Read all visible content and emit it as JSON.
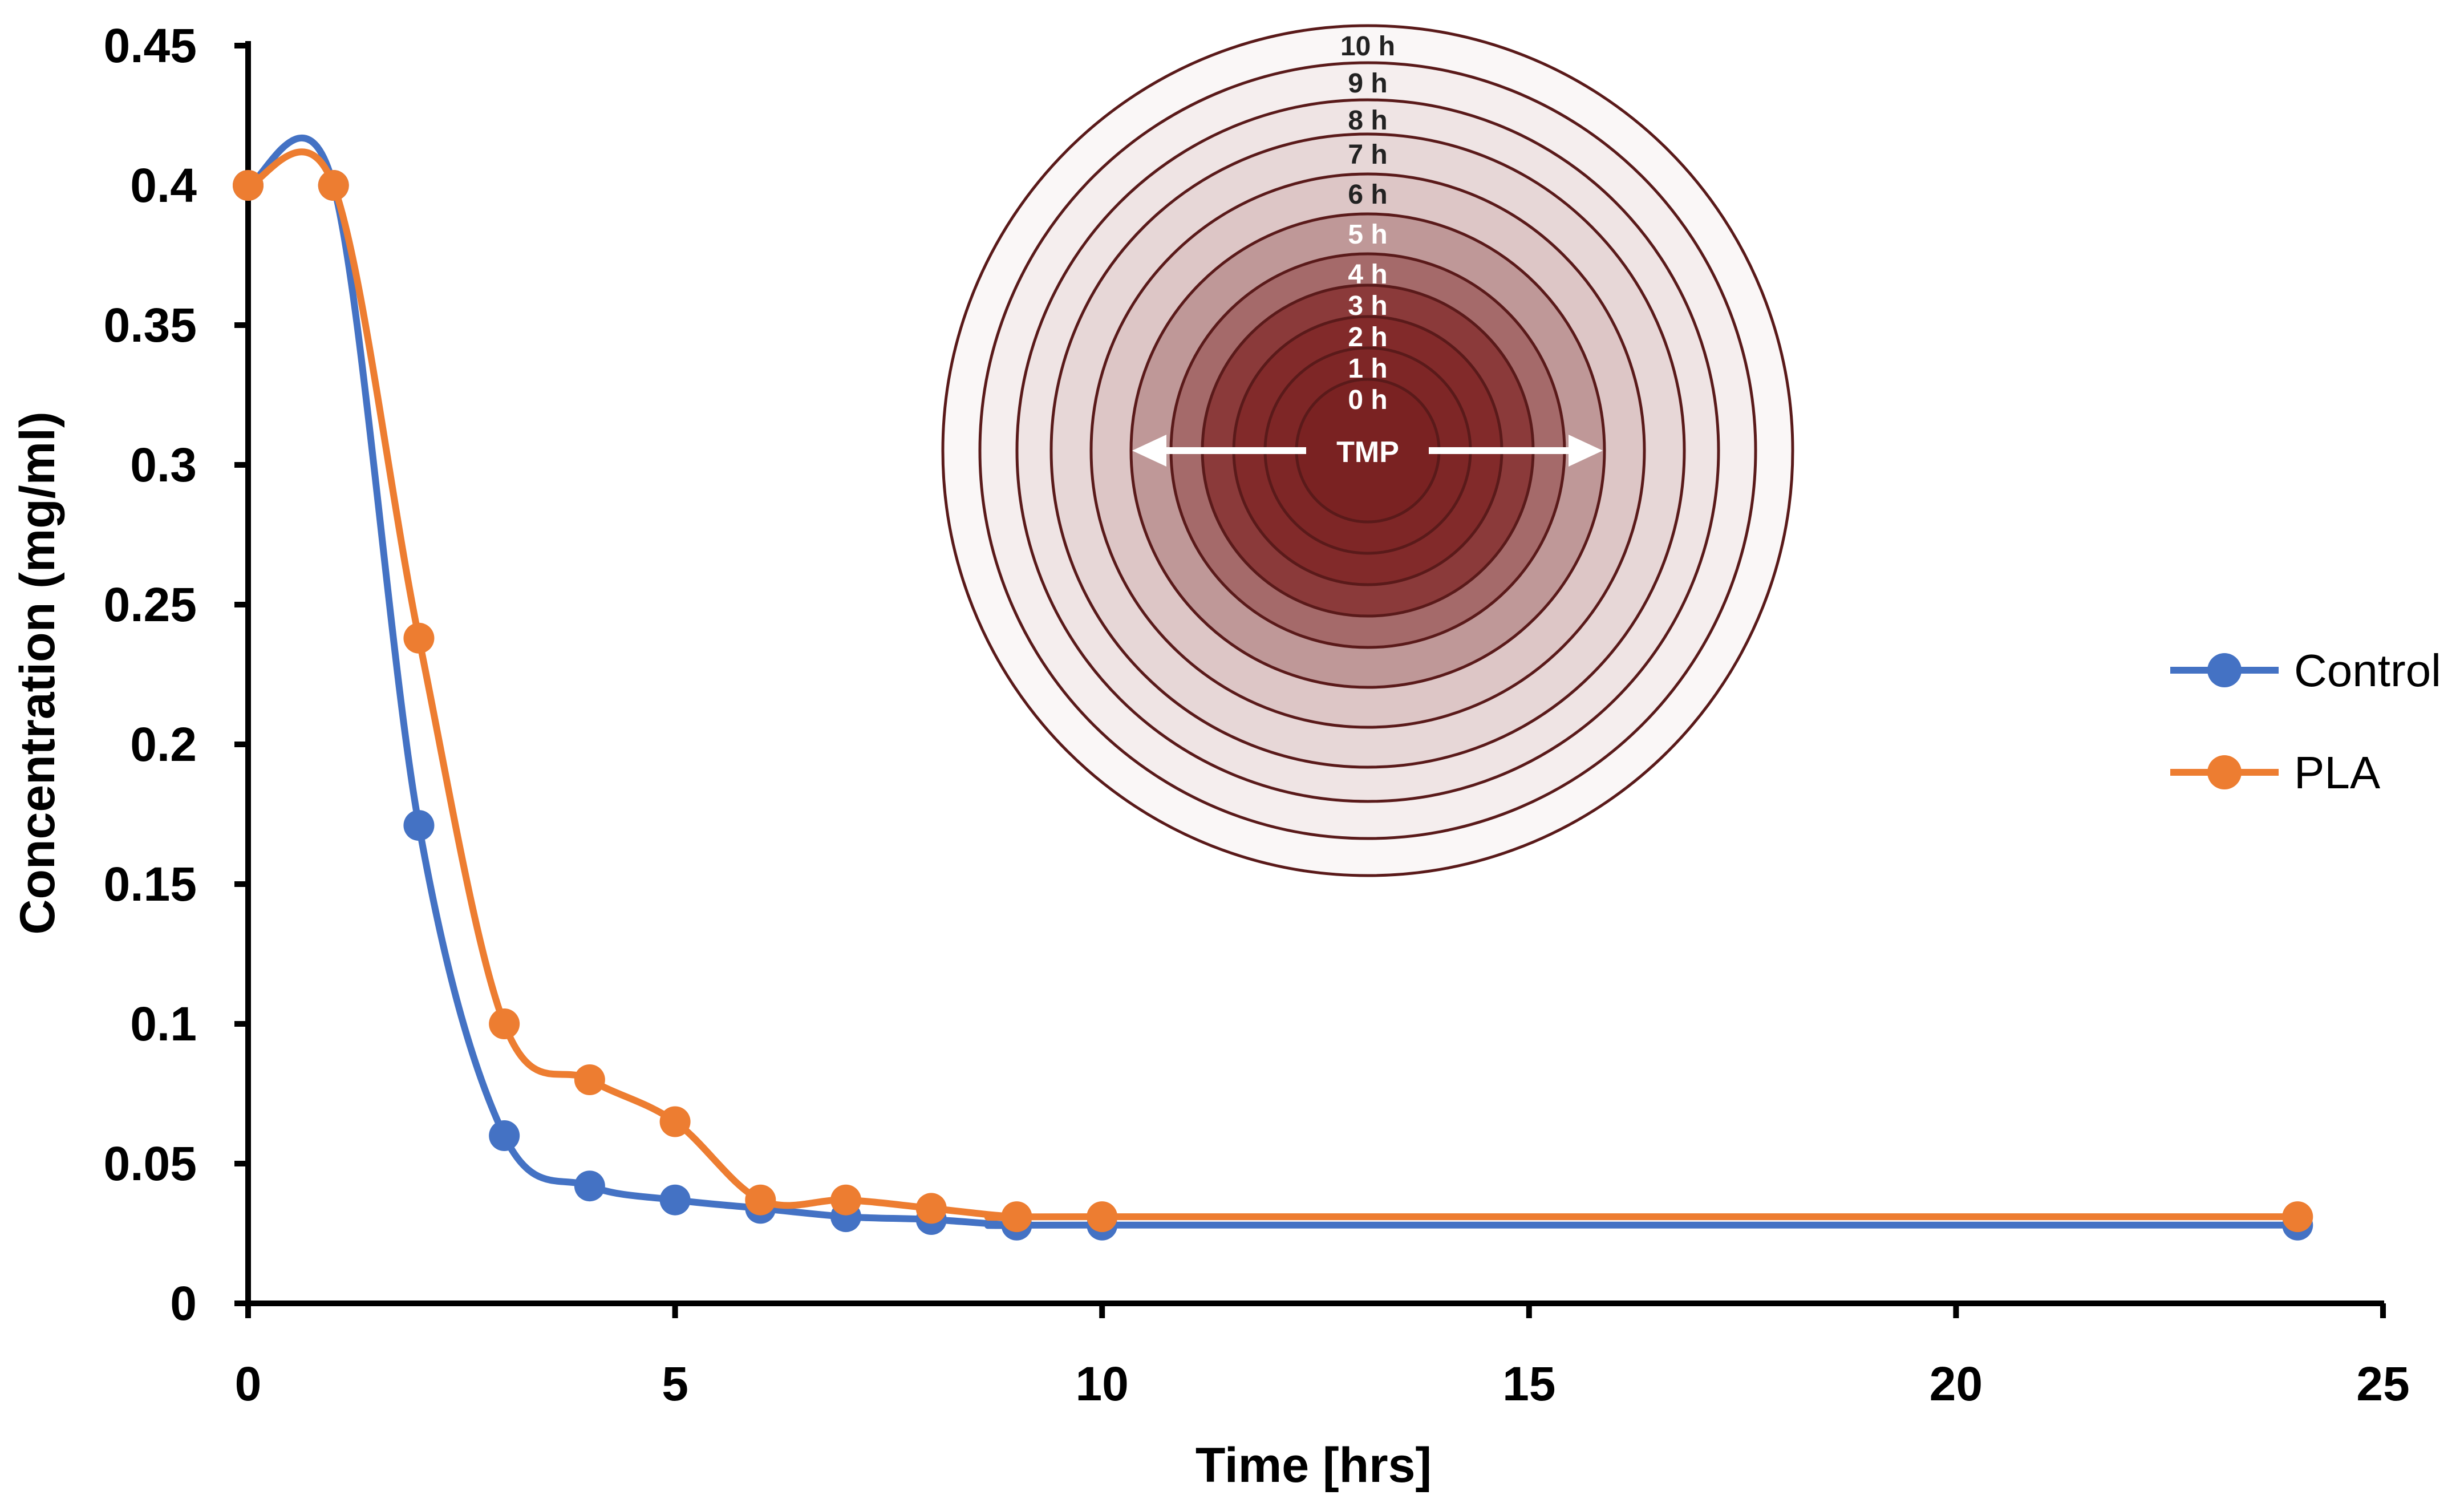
{
  "chart_data": {
    "type": "line",
    "title": "",
    "xlabel": "Time [hrs]",
    "ylabel": "Concentration (mg/ml)",
    "xlim": [
      0,
      25
    ],
    "ylim": [
      0,
      0.45
    ],
    "x_ticks": [
      0,
      5,
      10,
      15,
      20,
      25
    ],
    "x_tick_labels": [
      "0",
      "5",
      "10",
      "15",
      "20",
      "25"
    ],
    "y_ticks": [
      0,
      0.05,
      0.1,
      0.15,
      0.2,
      0.25,
      0.3,
      0.35,
      0.4,
      0.45
    ],
    "y_tick_labels": [
      "0",
      "0.05",
      "0.1",
      "0.15",
      "0.2",
      "0.25",
      "0.3",
      "0.35",
      "0.4",
      "0.45"
    ],
    "grid": false,
    "smooth": true,
    "legend_position": "right",
    "series": [
      {
        "name": "Control",
        "color": "#4472c4",
        "x": [
          0,
          1,
          2,
          3,
          4,
          5,
          6,
          7,
          8,
          9,
          10,
          24
        ],
        "y": [
          0.4,
          0.4,
          0.171,
          0.06,
          0.042,
          0.037,
          0.034,
          0.031,
          0.03,
          0.028,
          0.028,
          0.028
        ]
      },
      {
        "name": "PLA",
        "color": "#ed7d31",
        "x": [
          0,
          1,
          2,
          3,
          4,
          5,
          6,
          7,
          8,
          9,
          10,
          24
        ],
        "y": [
          0.4,
          0.4,
          0.238,
          0.1,
          0.08,
          0.065,
          0.037,
          0.037,
          0.034,
          0.031,
          0.031,
          0.031
        ]
      }
    ]
  },
  "inset": {
    "center_label": "TMP",
    "ring_labels": [
      "0 h",
      "1 h",
      "2 h",
      "3 h",
      "4 h",
      "5 h",
      "6 h",
      "7 h",
      "8 h",
      "9 h",
      "10 h"
    ],
    "ring_colors": [
      "#7a2222",
      "#7e2626",
      "#822a2a",
      "#8b3a3a",
      "#a56a6a",
      "#bf9898",
      "#ddc6c6",
      "#e7d7d7",
      "#efe4e4",
      "#f5eeee",
      "#faf7f7"
    ],
    "stroke_color": "#5a1a1a",
    "arrow_color": "#ffffff"
  }
}
